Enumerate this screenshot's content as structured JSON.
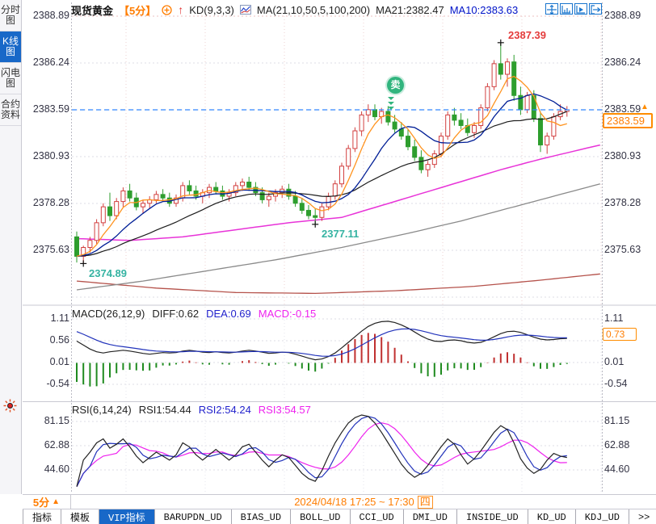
{
  "app_title": "现货黄金 K线图",
  "colors": {
    "accent_blue": "#1868c8",
    "orange": "#ff7d00",
    "red_up": "#d23f3f",
    "green_down": "#2e9e2e",
    "teal_label": "#35b3a2",
    "magenta": "#ee22ee",
    "dea_blue": "#2222cc",
    "ma5": "#ff9420",
    "ma10": "#001e96",
    "ma21": "#1c1c1c",
    "ma50": "#e833d8",
    "ma100": "#8a8a8a",
    "ma200": "#b5524b",
    "price_line": "#3388ff"
  },
  "sidebar": {
    "tabs": [
      {
        "label": "分时图",
        "active": false
      },
      {
        "label": "K线图",
        "active": true
      },
      {
        "label": "闪电图",
        "active": false
      },
      {
        "label": "合约资料",
        "active": false
      }
    ]
  },
  "header": {
    "symbol": "现货黄金",
    "period": "【5分】",
    "kd": "KD(9,3,3)",
    "ma": "MA(21,10,50,5,100,200)",
    "ma21": "MA21:2382.47",
    "ma10": "MA10:2383.63",
    "up_arrow": "↑"
  },
  "toolbar_icons": [
    "crosshair-icon",
    "axis-scale-icon",
    "axis-play-icon",
    "exit-icon"
  ],
  "main_chart": {
    "y_labels": [
      "2388.89",
      "2386.24",
      "2383.59",
      "2380.93",
      "2378.28",
      "2375.63"
    ],
    "price_tag": "2383.59",
    "tag_arrow": "▲",
    "annotations": {
      "high": "2387.39",
      "low_left": "2374.89",
      "low_mid": "2377.11",
      "sell": "卖"
    }
  },
  "macd": {
    "title": "MACD(26,12,9)",
    "diff_label": "DIFF:0.62",
    "dea_label": "DEA:0.69",
    "macd_label": "MACD:-0.15",
    "y_labels": [
      "1.11",
      "0.56",
      "0.01",
      "-0.54"
    ],
    "right_labels": [
      "1.11",
      "0.01",
      "-0.54"
    ],
    "tag": "0.73"
  },
  "rsi": {
    "title": "RSI(6,14,24)",
    "rsi1_label": "RSI1:54.44",
    "rsi2_label": "RSI2:54.24",
    "rsi3_label": "RSI3:54.57",
    "y_labels": [
      "81.15",
      "62.88",
      "44.60"
    ]
  },
  "status_bar": {
    "period": "5分",
    "arrow": "▲",
    "datetime": "2024/04/18 17:25 ~ 17:30",
    "weekday": "四"
  },
  "tab_bar": {
    "tabs": [
      {
        "label": "指标"
      },
      {
        "label": "模板"
      },
      {
        "label": "VIP指标",
        "active": true
      },
      {
        "label": "BARUPDN_UD"
      },
      {
        "label": "BIAS_UD"
      },
      {
        "label": "BOLL_UD"
      },
      {
        "label": "CCI_UD"
      },
      {
        "label": "DMI_UD"
      },
      {
        "label": "INSIDE_UD"
      },
      {
        "label": "KD_UD"
      },
      {
        "label": "KDJ_UD"
      },
      {
        "label": ">>"
      }
    ]
  },
  "chart_data": {
    "type": "candlestick+indicators",
    "symbol": "现货黄金",
    "interval": "5分",
    "price_axis": {
      "ticks": [
        2388.89,
        2386.24,
        2383.59,
        2380.93,
        2378.28,
        2375.63
      ],
      "current": 2383.59
    },
    "high_point": 2387.39,
    "low_point": 2374.89,
    "mid_low_point": 2377.11,
    "candles": [
      [
        2376.4,
        2376.7,
        2374.95,
        2375.3
      ],
      [
        2375.3,
        2375.9,
        2374.89,
        2375.8
      ],
      [
        2375.8,
        2376.4,
        2375.5,
        2376.2
      ],
      [
        2376.2,
        2377.4,
        2376.0,
        2377.2
      ],
      [
        2377.2,
        2378.3,
        2377.0,
        2378.1
      ],
      [
        2378.1,
        2378.9,
        2377.3,
        2377.6
      ],
      [
        2377.6,
        2378.6,
        2377.4,
        2378.4
      ],
      [
        2378.4,
        2379.2,
        2378.1,
        2379.0
      ],
      [
        2379.0,
        2379.4,
        2378.4,
        2378.6
      ],
      [
        2378.6,
        2378.9,
        2377.9,
        2378.1
      ],
      [
        2378.1,
        2378.5,
        2377.7,
        2378.3
      ],
      [
        2378.3,
        2378.7,
        2378.0,
        2378.5
      ],
      [
        2378.5,
        2379.0,
        2378.3,
        2378.8
      ],
      [
        2378.8,
        2379.1,
        2378.4,
        2378.6
      ],
      [
        2378.6,
        2378.9,
        2378.1,
        2378.3
      ],
      [
        2378.3,
        2378.8,
        2378.1,
        2378.6
      ],
      [
        2378.6,
        2379.5,
        2378.4,
        2379.3
      ],
      [
        2379.3,
        2379.6,
        2378.8,
        2379.0
      ],
      [
        2379.0,
        2379.3,
        2378.5,
        2378.7
      ],
      [
        2378.7,
        2379.1,
        2378.3,
        2378.9
      ],
      [
        2378.9,
        2379.4,
        2378.6,
        2379.2
      ],
      [
        2379.2,
        2379.5,
        2378.8,
        2379.0
      ],
      [
        2379.0,
        2379.3,
        2378.5,
        2378.7
      ],
      [
        2378.7,
        2379.1,
        2378.4,
        2378.9
      ],
      [
        2378.9,
        2379.5,
        2378.7,
        2379.3
      ],
      [
        2379.3,
        2379.7,
        2379.0,
        2379.5
      ],
      [
        2379.5,
        2379.8,
        2379.0,
        2379.2
      ],
      [
        2379.2,
        2379.5,
        2378.7,
        2378.9
      ],
      [
        2378.9,
        2379.2,
        2378.3,
        2378.5
      ],
      [
        2378.5,
        2378.9,
        2378.1,
        2378.7
      ],
      [
        2378.7,
        2379.1,
        2378.4,
        2378.9
      ],
      [
        2378.9,
        2379.3,
        2378.6,
        2379.1
      ],
      [
        2379.1,
        2379.4,
        2378.5,
        2378.7
      ],
      [
        2378.7,
        2379.0,
        2378.1,
        2378.3
      ],
      [
        2378.3,
        2378.6,
        2377.7,
        2377.9
      ],
      [
        2377.9,
        2378.2,
        2377.4,
        2377.6
      ],
      [
        2377.6,
        2378.0,
        2377.11,
        2377.5
      ],
      [
        2377.5,
        2378.3,
        2377.3,
        2378.1
      ],
      [
        2378.1,
        2378.9,
        2377.9,
        2378.7
      ],
      [
        2378.7,
        2379.6,
        2378.5,
        2379.4
      ],
      [
        2379.4,
        2380.6,
        2379.2,
        2380.4
      ],
      [
        2380.4,
        2381.6,
        2380.2,
        2381.4
      ],
      [
        2381.4,
        2382.6,
        2381.2,
        2382.4
      ],
      [
        2382.4,
        2383.5,
        2382.1,
        2383.3
      ],
      [
        2383.3,
        2383.9,
        2382.9,
        2383.6
      ],
      [
        2383.6,
        2383.9,
        2383.0,
        2383.2
      ],
      [
        2383.2,
        2383.7,
        2382.8,
        2383.5
      ],
      [
        2383.5,
        2383.8,
        2382.7,
        2382.9
      ],
      [
        2382.9,
        2383.3,
        2382.3,
        2382.5
      ],
      [
        2382.5,
        2382.9,
        2381.9,
        2382.1
      ],
      [
        2382.1,
        2382.5,
        2381.3,
        2381.5
      ],
      [
        2381.5,
        2381.9,
        2380.7,
        2380.9
      ],
      [
        2380.9,
        2381.3,
        2380.0,
        2380.2
      ],
      [
        2380.2,
        2380.7,
        2379.8,
        2380.5
      ],
      [
        2380.5,
        2381.3,
        2380.3,
        2381.1
      ],
      [
        2381.1,
        2382.3,
        2380.9,
        2382.1
      ],
      [
        2382.1,
        2383.5,
        2381.9,
        2383.3
      ],
      [
        2383.3,
        2383.7,
        2382.7,
        2383.0
      ],
      [
        2383.0,
        2383.4,
        2382.5,
        2382.7
      ],
      [
        2382.7,
        2383.1,
        2382.1,
        2382.3
      ],
      [
        2382.3,
        2382.9,
        2382.0,
        2382.7
      ],
      [
        2382.7,
        2383.9,
        2382.5,
        2383.7
      ],
      [
        2383.7,
        2385.1,
        2383.5,
        2384.9
      ],
      [
        2384.9,
        2386.4,
        2384.7,
        2386.2
      ],
      [
        2386.2,
        2387.39,
        2385.3,
        2385.6
      ],
      [
        2385.6,
        2386.5,
        2384.9,
        2386.3
      ],
      [
        2386.3,
        2386.7,
        2384.1,
        2384.4
      ],
      [
        2384.4,
        2384.9,
        2383.3,
        2383.6
      ],
      [
        2383.6,
        2384.6,
        2383.4,
        2384.4
      ],
      [
        2384.4,
        2384.7,
        2382.9,
        2383.1
      ],
      [
        2383.1,
        2383.5,
        2381.2,
        2381.6
      ],
      [
        2381.6,
        2382.3,
        2381.1,
        2382.1
      ],
      [
        2382.1,
        2383.4,
        2381.9,
        2383.2
      ],
      [
        2383.2,
        2383.9,
        2383.0,
        2383.5
      ],
      [
        2383.5,
        2383.8,
        2383.2,
        2383.59
      ]
    ],
    "slow_ma_anchors": {
      "ma50": [
        [
          0,
          2376.3
        ],
        [
          8,
          2376.2
        ],
        [
          16,
          2376.4
        ],
        [
          24,
          2376.8
        ],
        [
          32,
          2377.2
        ],
        [
          40,
          2377.5
        ],
        [
          48,
          2378.4
        ],
        [
          56,
          2379.3
        ],
        [
          64,
          2380.2
        ],
        [
          70,
          2380.8
        ],
        [
          79,
          2381.6
        ]
      ],
      "ma100": [
        [
          0,
          2373.4
        ],
        [
          10,
          2373.9
        ],
        [
          20,
          2374.5
        ],
        [
          30,
          2375.1
        ],
        [
          40,
          2375.8
        ],
        [
          50,
          2376.6
        ],
        [
          58,
          2377.3
        ],
        [
          66,
          2378.1
        ],
        [
          74,
          2378.9
        ],
        [
          79,
          2379.4
        ]
      ],
      "ma200": [
        [
          0,
          2373.9
        ],
        [
          12,
          2373.5
        ],
        [
          24,
          2373.25
        ],
        [
          36,
          2373.2
        ],
        [
          48,
          2373.35
        ],
        [
          60,
          2373.6
        ],
        [
          70,
          2373.95
        ],
        [
          79,
          2374.3
        ]
      ]
    },
    "macd_axis": {
      "ticks": [
        1.11,
        0.56,
        0.01,
        -0.54
      ],
      "current": 0.73
    },
    "macd_diff": [
      0.55,
      0.45,
      0.35,
      0.28,
      0.25,
      0.28,
      0.3,
      0.32,
      0.3,
      0.27,
      0.24,
      0.22,
      0.24,
      0.26,
      0.25,
      0.26,
      0.3,
      0.32,
      0.3,
      0.27,
      0.26,
      0.28,
      0.26,
      0.25,
      0.27,
      0.3,
      0.32,
      0.3,
      0.27,
      0.24,
      0.25,
      0.27,
      0.26,
      0.22,
      0.17,
      0.12,
      0.08,
      0.1,
      0.16,
      0.25,
      0.38,
      0.52,
      0.66,
      0.8,
      0.92,
      1.0,
      1.04,
      1.05,
      1.02,
      0.96,
      0.88,
      0.78,
      0.68,
      0.6,
      0.55,
      0.54,
      0.57,
      0.58,
      0.56,
      0.52,
      0.5,
      0.52,
      0.58,
      0.66,
      0.74,
      0.79,
      0.8,
      0.77,
      0.71,
      0.65,
      0.6,
      0.58,
      0.59,
      0.61,
      0.62
    ],
    "rsi_axis": {
      "ticks": [
        81.15,
        62.88,
        44.6
      ]
    },
    "rsi1": [
      32,
      52,
      58,
      65,
      68,
      61,
      64,
      68,
      62,
      55,
      50,
      54,
      58,
      55,
      52,
      56,
      65,
      62,
      56,
      52,
      56,
      60,
      56,
      52,
      56,
      62,
      64,
      58,
      52,
      47,
      52,
      56,
      54,
      48,
      42,
      38,
      36,
      44,
      55,
      65,
      73,
      80,
      84,
      86,
      85,
      80,
      73,
      65,
      57,
      49,
      43,
      39,
      42,
      48,
      55,
      62,
      68,
      64,
      56,
      49,
      53,
      59,
      66,
      73,
      78,
      75,
      65,
      53,
      46,
      42,
      45,
      52,
      57,
      55,
      54
    ],
    "signal_marker": {
      "label": "卖",
      "candle_index": 48
    }
  }
}
